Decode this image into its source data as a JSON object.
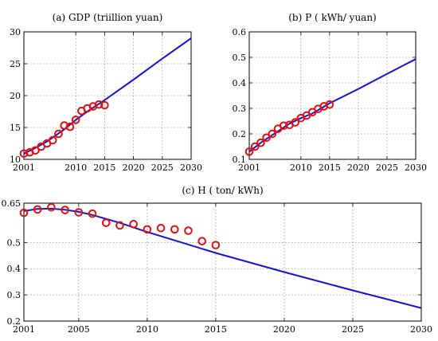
{
  "colors": {
    "model_line": "#1414d2",
    "observed_marker": "#e01010"
  },
  "chart_data": [
    {
      "type": "line",
      "title": "(a) GDP (triillion yuan)",
      "xlabel": "",
      "ylabel": "",
      "xlim": [
        2001,
        2030
      ],
      "ylim": [
        10,
        30
      ],
      "xticks": [
        2001,
        2010,
        2015,
        2020,
        2025,
        2030
      ],
      "yticks": [
        10,
        15,
        20,
        25,
        30
      ],
      "ytick_labels": [
        "10",
        "15",
        "20",
        "25",
        "30"
      ],
      "grid": true,
      "series": [
        {
          "style": "line",
          "x": [
            2001,
            2003,
            2005,
            2008,
            2010,
            2012,
            2015,
            2020,
            2025,
            2030
          ],
          "y": [
            10.9,
            11.8,
            12.8,
            14.7,
            16.2,
            17.5,
            19.3,
            22.5,
            25.8,
            29.0
          ]
        },
        {
          "style": "circle-markers",
          "x": [
            2001,
            2002,
            2003,
            2004,
            2005,
            2006,
            2007,
            2008,
            2009,
            2010,
            2011,
            2012,
            2013,
            2014,
            2015
          ],
          "y": [
            10.9,
            11.1,
            11.4,
            12.0,
            12.5,
            13.0,
            14.0,
            15.3,
            15.1,
            16.2,
            17.6,
            18.0,
            18.3,
            18.6,
            18.5
          ]
        }
      ]
    },
    {
      "type": "line",
      "title": "(b) P ( kWh/ yuan)",
      "xlabel": "",
      "ylabel": "",
      "xlim": [
        2001,
        2030
      ],
      "ylim": [
        0.1,
        0.6
      ],
      "xticks": [
        2001,
        2010,
        2015,
        2020,
        2025,
        2030
      ],
      "yticks": [
        0.1,
        0.2,
        0.3,
        0.4,
        0.5,
        0.6
      ],
      "ytick_labels": [
        "0.1",
        "0.2",
        "0.3",
        "0.4",
        "0.5",
        "0.6"
      ],
      "grid": true,
      "series": [
        {
          "style": "line",
          "x": [
            2001,
            2003,
            2005,
            2008,
            2010,
            2012,
            2015,
            2020,
            2025,
            2030
          ],
          "y": [
            0.13,
            0.165,
            0.195,
            0.24,
            0.262,
            0.28,
            0.32,
            0.376,
            0.435,
            0.493
          ]
        },
        {
          "style": "circle-markers",
          "x": [
            2001,
            2002,
            2003,
            2004,
            2005,
            2006,
            2007,
            2008,
            2009,
            2010,
            2011,
            2012,
            2013,
            2014,
            2015
          ],
          "y": [
            0.13,
            0.15,
            0.165,
            0.185,
            0.2,
            0.22,
            0.232,
            0.235,
            0.245,
            0.262,
            0.272,
            0.285,
            0.298,
            0.308,
            0.315
          ]
        }
      ]
    },
    {
      "type": "line",
      "title": "(c) H ( ton/ kWh)",
      "xlabel": "",
      "ylabel": "",
      "xlim": [
        2001,
        2030
      ],
      "ylim": [
        0.2,
        0.65
      ],
      "xticks": [
        2001,
        2005,
        2010,
        2015,
        2020,
        2025,
        2030
      ],
      "yticks": [
        0.2,
        0.3,
        0.4,
        0.5,
        0.65
      ],
      "ytick_labels": [
        "0.2",
        "0.3",
        "0.4",
        "0.5",
        "0.65"
      ],
      "grid": true,
      "series": [
        {
          "style": "line",
          "x": [
            2001,
            2002,
            2003,
            2004,
            2005,
            2006,
            2008,
            2010,
            2012,
            2015,
            2020,
            2025,
            2030
          ],
          "y": [
            0.62,
            0.628,
            0.629,
            0.625,
            0.617,
            0.605,
            0.575,
            0.54,
            0.508,
            0.46,
            0.387,
            0.317,
            0.25
          ]
        },
        {
          "style": "circle-markers",
          "x": [
            2001,
            2002,
            2003,
            2004,
            2005,
            2006,
            2007,
            2008,
            2009,
            2010,
            2011,
            2012,
            2013,
            2014,
            2015
          ],
          "y": [
            0.613,
            0.626,
            0.634,
            0.624,
            0.615,
            0.61,
            0.575,
            0.565,
            0.57,
            0.55,
            0.555,
            0.55,
            0.545,
            0.505,
            0.49
          ]
        }
      ]
    }
  ]
}
